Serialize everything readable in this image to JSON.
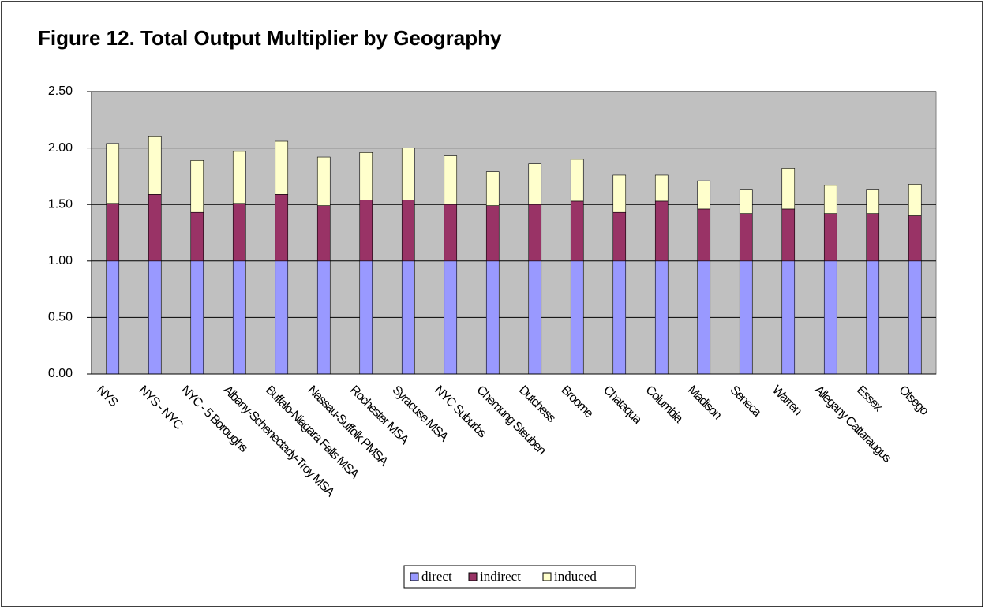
{
  "chart_data": {
    "type": "stacked_bar",
    "title": "Figure 12. Total Output Multiplier by Geography",
    "categories": [
      "NYS",
      "NYS - NYC",
      "NYC - 5 Boroughs",
      "Albany-Schenectady-Troy MSA",
      "Buffalo-Niagara Falls MSA",
      "Nassau-Suffolk PMSA",
      "Rochester MSA",
      "Syracuse MSA",
      "NYC Suburbs",
      "Chemung Steuben",
      "Dutchess",
      "Broome",
      "Chataqua",
      "Columbia",
      "Madison",
      "Seneca",
      "Warren",
      "Allegany Cattaraugus",
      "Essex",
      "Otsego"
    ],
    "series": [
      {
        "name": "direct",
        "color": "#9999ff",
        "values": [
          1.0,
          1.0,
          1.0,
          1.0,
          1.0,
          1.0,
          1.0,
          1.0,
          1.0,
          1.0,
          1.0,
          1.0,
          1.0,
          1.0,
          1.0,
          1.0,
          1.0,
          1.0,
          1.0,
          1.0
        ]
      },
      {
        "name": "indirect",
        "color": "#993366",
        "values": [
          0.51,
          0.59,
          0.43,
          0.51,
          0.59,
          0.49,
          0.54,
          0.54,
          0.5,
          0.49,
          0.5,
          0.53,
          0.43,
          0.53,
          0.46,
          0.42,
          0.46,
          0.42,
          0.42,
          0.4
        ]
      },
      {
        "name": "induced",
        "color": "#ffffcc",
        "values": [
          0.53,
          0.51,
          0.46,
          0.46,
          0.47,
          0.43,
          0.42,
          0.46,
          0.43,
          0.3,
          0.36,
          0.37,
          0.33,
          0.23,
          0.25,
          0.21,
          0.36,
          0.25,
          0.21,
          0.28
        ]
      }
    ],
    "ylim": [
      0,
      2.5
    ],
    "yticks": [
      {
        "value": 0,
        "label": "0.00"
      },
      {
        "value": 0.5,
        "label": "0.50"
      },
      {
        "value": 1,
        "label": "1.00"
      },
      {
        "value": 1.5,
        "label": "1.50"
      },
      {
        "value": 2,
        "label": "2.00"
      },
      {
        "value": 2.5,
        "label": "2.50"
      }
    ],
    "grid": true,
    "plot_background": "#c0c0c0",
    "legend": "bottom"
  }
}
